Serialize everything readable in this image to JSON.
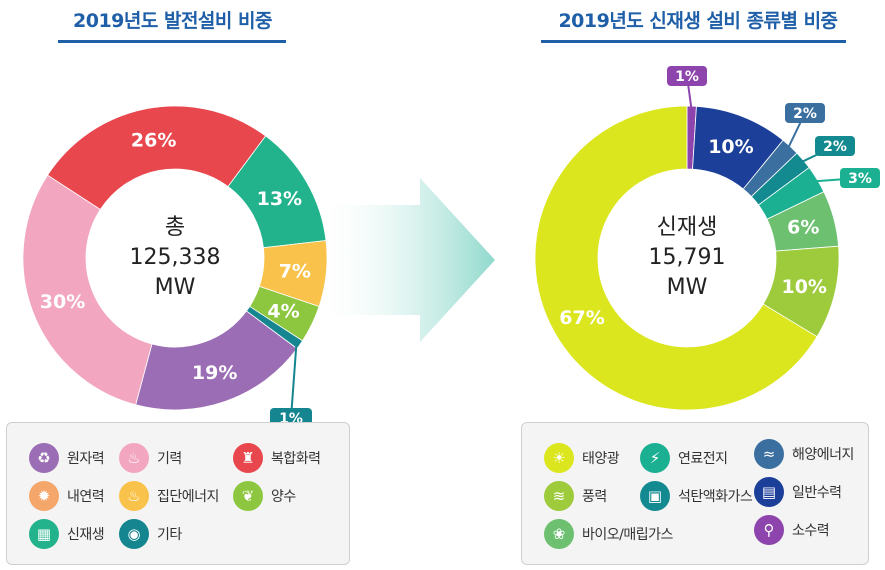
{
  "chart_data": [
    {
      "type": "pie",
      "title": "2019년도 발전설비 비중",
      "center_label": [
        "총",
        "125,338",
        "MW"
      ],
      "slices": [
        {
          "name": "복합화력",
          "value": 26,
          "label": "26%",
          "color": "#e8474d"
        },
        {
          "name": "신재생",
          "value": 13,
          "label": "13%",
          "color": "#22b38c"
        },
        {
          "name": "집단에너지",
          "value": 7,
          "label": "7%",
          "color": "#f9c24b"
        },
        {
          "name": "양수",
          "value": 4,
          "label": "4%",
          "color": "#8dc63f"
        },
        {
          "name": "기타",
          "value": 1,
          "label": "1%",
          "color": "#15868f"
        },
        {
          "name": "원자력",
          "value": 19,
          "label": "19%",
          "color": "#9b6db5"
        },
        {
          "name": "기력",
          "value": 30,
          "label": "30%",
          "color": "#f2a6bf"
        }
      ]
    },
    {
      "type": "pie",
      "title": "2019년도 신재생 설비 종류별 비중",
      "center_label": [
        "신재생",
        "15,791",
        "MW"
      ],
      "slices": [
        {
          "name": "소수력",
          "value": 1,
          "label": "1%",
          "color": "#8e44ad"
        },
        {
          "name": "일반수력",
          "value": 10,
          "label": "10%",
          "color": "#1c3f99"
        },
        {
          "name": "해양에너지",
          "value": 2,
          "label": "2%",
          "color": "#3b6fa0"
        },
        {
          "name": "석탄액화가스",
          "value": 2,
          "label": "2%",
          "color": "#138a8f"
        },
        {
          "name": "연료전지",
          "value": 3,
          "label": "3%",
          "color": "#1bb092"
        },
        {
          "name": "바이오/매립가스",
          "value": 6,
          "label": "6%",
          "color": "#6cc070"
        },
        {
          "name": "풍력",
          "value": 10,
          "label": "10%",
          "color": "#9dcb3c"
        },
        {
          "name": "태양광",
          "value": 67,
          "label": "67%",
          "color": "#dce61e"
        }
      ]
    }
  ],
  "legend_left": [
    {
      "label": "원자력",
      "icon": "atom-icon",
      "glyph": "♻",
      "color": "#9b6db5"
    },
    {
      "label": "기력",
      "icon": "flame-icon",
      "glyph": "♨",
      "color": "#f2a6bf"
    },
    {
      "label": "복합화력",
      "icon": "factory-icon",
      "glyph": "♜",
      "color": "#e8474d"
    },
    {
      "label": "내연력",
      "icon": "engine-icon",
      "glyph": "✹",
      "color": "#f5a66a"
    },
    {
      "label": "집단에너지",
      "icon": "heat-network-icon",
      "glyph": "♨",
      "color": "#f9c24b"
    },
    {
      "label": "양수",
      "icon": "water-drop-icon",
      "glyph": "❦",
      "color": "#8dc63f"
    },
    {
      "label": "신재생",
      "icon": "solar-panel-icon",
      "glyph": "▦",
      "color": "#22b38c"
    },
    {
      "label": "기타",
      "icon": "other-icon",
      "glyph": "◉",
      "color": "#15868f"
    }
  ],
  "legend_right": [
    {
      "label": "태양광",
      "icon": "sun-icon",
      "glyph": "☀",
      "color": "#dce61e"
    },
    {
      "label": "연료전지",
      "icon": "battery-icon",
      "glyph": "⚡",
      "color": "#1bb092"
    },
    {
      "label": "해양에너지",
      "icon": "wave-icon",
      "glyph": "≈",
      "color": "#3b6fa0"
    },
    {
      "label": "풍력",
      "icon": "wind-icon",
      "glyph": "≋",
      "color": "#9dcb3c"
    },
    {
      "label": "석탄액화가스",
      "icon": "gas-icon",
      "glyph": "▣",
      "color": "#138a8f"
    },
    {
      "label": "일반수력",
      "icon": "dam-icon",
      "glyph": "▤",
      "color": "#1c3f99"
    },
    {
      "label": "바이오/매립가스",
      "icon": "leaf-icon",
      "glyph": "❀",
      "color": "#6cc070"
    },
    {
      "label": "소수력",
      "icon": "faucet-icon",
      "glyph": "⚲",
      "color": "#8e44ad"
    }
  ]
}
